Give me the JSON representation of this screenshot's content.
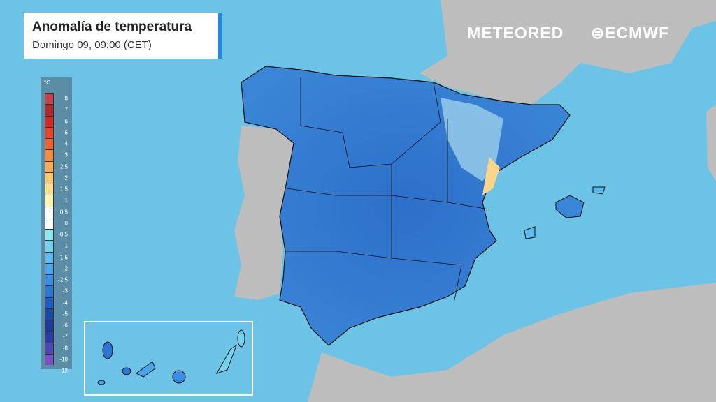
{
  "title": "Anomalía de temperatura",
  "subtitle": "Domingo 09, 09:00 (CET)",
  "logos": {
    "meteored": "METEORED",
    "ecmwf": "ECMWF"
  },
  "legend": {
    "unit": "°C",
    "labels": [
      "8",
      "7",
      "6",
      "5",
      "4",
      "3",
      "2.5",
      "2",
      "1.5",
      "1",
      "0.5",
      "0",
      "-0.5",
      "-1",
      "-1.5",
      "-2",
      "-2.5",
      "-3",
      "-4",
      "-5",
      "-6",
      "-7",
      "-8",
      "-10",
      "-12"
    ],
    "colors": [
      "#c8404a",
      "#b02a30",
      "#d42a26",
      "#e8442a",
      "#f2622e",
      "#f98a3e",
      "#fbab52",
      "#fdc86c",
      "#fde18c",
      "#fff3b0",
      "#ffffff",
      "#ffffff",
      "#8ee8ee",
      "#72d2f0",
      "#5cbcef",
      "#4aa6ec",
      "#3a8ee4",
      "#2c76d6",
      "#1e5ec4",
      "#1a4aa8",
      "#1c3c9a",
      "#2e3ca8",
      "#5048b8",
      "#7a52c8",
      "#9a5ada"
    ]
  },
  "colors": {
    "sea": "#6cc3e6",
    "land": "#bdbdbd",
    "anomaly_main": "#2a6cc4",
    "accent": "#1e88e5"
  }
}
